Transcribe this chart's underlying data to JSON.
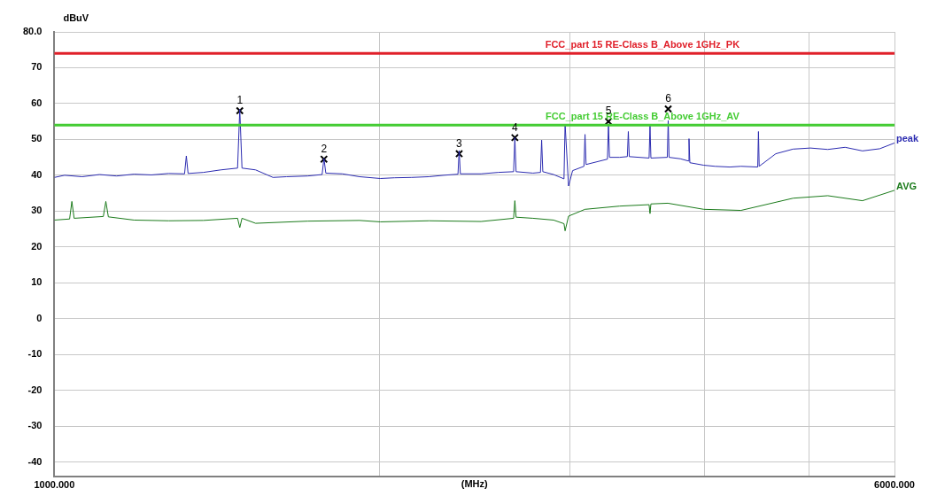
{
  "chart_data": {
    "type": "line",
    "xlabel": "(MHz)",
    "ylabel": "dBuV",
    "log": "x",
    "grid": true,
    "legend": false,
    "marker": "none",
    "line_style": "solid",
    "xlim": [
      1000,
      6000
    ],
    "xticks": [
      {
        "value": 1000,
        "label": "1000.000"
      },
      {
        "value": 2000,
        "label": null
      },
      {
        "value": 3000,
        "label": null
      },
      {
        "value": 4000,
        "label": null
      },
      {
        "value": 5000,
        "label": null
      },
      {
        "value": 6000,
        "label": "6000.000"
      }
    ],
    "ylim": [
      -44,
      80
    ],
    "yticks": [
      -40,
      -30,
      -20,
      -10,
      0,
      10,
      20,
      30,
      40,
      50,
      60,
      70,
      {
        "value": 80,
        "label": "80.0"
      }
    ],
    "series": [
      {
        "name": "peak",
        "color": "#2b2bb0",
        "x": [
          1000,
          1022,
          1061,
          1101,
          1142,
          1185,
          1230,
          1276,
          1320,
          1325,
          1330,
          1374,
          1426,
          1478,
          1485,
          1492,
          1536,
          1594,
          1641,
          1716,
          1770,
          1777,
          1784,
          1848,
          1917,
          2004,
          2065,
          2142,
          2223,
          2294,
          2365,
          2371,
          2377,
          2484,
          2577,
          2663,
          2670,
          2677,
          2775,
          2820,
          2827,
          2834,
          2900,
          2965,
          2972,
          2994,
          3020,
          3094,
          3101,
          3108,
          3253,
          3260,
          3267,
          3339,
          3394,
          3401,
          3408,
          3555,
          3562,
          3569,
          3696,
          3703,
          3710,
          3800,
          3864,
          3871,
          3878,
          3995,
          4092,
          4223,
          4325,
          4482,
          4489,
          4496,
          4658,
          4833,
          5015,
          5204,
          5400,
          5604,
          5814,
          6000
        ],
        "values": [
          39.4,
          40,
          39.6,
          40.2,
          39.8,
          40.3,
          40.1,
          40.5,
          40.4,
          45.4,
          40.5,
          40.8,
          41.5,
          42,
          58.4,
          42,
          41.5,
          39.4,
          39.6,
          39.8,
          40.2,
          44.7,
          40.6,
          40.4,
          39.6,
          39.1,
          39.3,
          39.4,
          39.6,
          40,
          40.3,
          46.9,
          40.4,
          40.4,
          40.8,
          41,
          50.5,
          41,
          40.6,
          40.8,
          49.8,
          41,
          40.2,
          39,
          54.3,
          37,
          41.3,
          42.5,
          51.4,
          43,
          44.5,
          54.3,
          45,
          45,
          45.2,
          52.2,
          45.2,
          44.8,
          53.8,
          44.8,
          45,
          55.3,
          45,
          44.6,
          44,
          50.2,
          43.5,
          42.8,
          42.5,
          42.3,
          42.5,
          42.3,
          52.2,
          42.5,
          46,
          47.3,
          47.6,
          47.2,
          47.8,
          46.8,
          47.4,
          49
        ]
      },
      {
        "name": "AVG",
        "color": "#1a7a1a",
        "x": [
          1000,
          1033,
          1038,
          1043,
          1110,
          1116,
          1122,
          1185,
          1276,
          1374,
          1478,
          1485,
          1492,
          1536,
          1716,
          1917,
          2004,
          2223,
          2484,
          2663,
          2670,
          2677,
          2775,
          2900,
          2965,
          2972,
          2994,
          3101,
          3339,
          3555,
          3562,
          3569,
          3700,
          3995,
          4325,
          4833,
          5204,
          5604,
          6000
        ],
        "values": [
          27.5,
          27.8,
          32.7,
          28,
          28.5,
          32.7,
          28.4,
          27.5,
          27.3,
          27.4,
          28,
          25.4,
          28,
          26.6,
          27.2,
          27.4,
          27,
          27.3,
          27.1,
          28,
          32.9,
          28.3,
          28,
          27.5,
          26.5,
          24.5,
          28.6,
          30.5,
          31.4,
          31.8,
          29.3,
          32,
          32.2,
          30.5,
          30.2,
          33.6,
          34.3,
          32.9,
          35.8
        ]
      },
      {
        "type": "scatter",
        "marker": "cross",
        "color": "#000000",
        "x": [
          1485,
          1777,
          2371,
          2670,
          3260,
          3703
        ],
        "values": [
          58,
          44.5,
          46,
          50.5,
          55,
          58.5
        ]
      }
    ],
    "ref_lines": [
      {
        "axis": "y",
        "value": 74,
        "label": "FCC_part 15 RE-Class B_Above 1GHz_PK",
        "color": "#e0202a"
      },
      {
        "axis": "y",
        "value": 54,
        "label": "FCC_part 15 RE-Class B_Above 1GHz_AV",
        "color": "#44cc33"
      }
    ],
    "annotations": [
      {
        "text": "1",
        "x": 1485,
        "y": 58
      },
      {
        "text": "2",
        "x": 1777,
        "y": 44.5
      },
      {
        "text": "3",
        "x": 2371,
        "y": 46
      },
      {
        "text": "4",
        "x": 2670,
        "y": 50.5
      },
      {
        "text": "5",
        "x": 3260,
        "y": 55
      },
      {
        "text": "6",
        "x": 3703,
        "y": 58.5
      }
    ]
  }
}
